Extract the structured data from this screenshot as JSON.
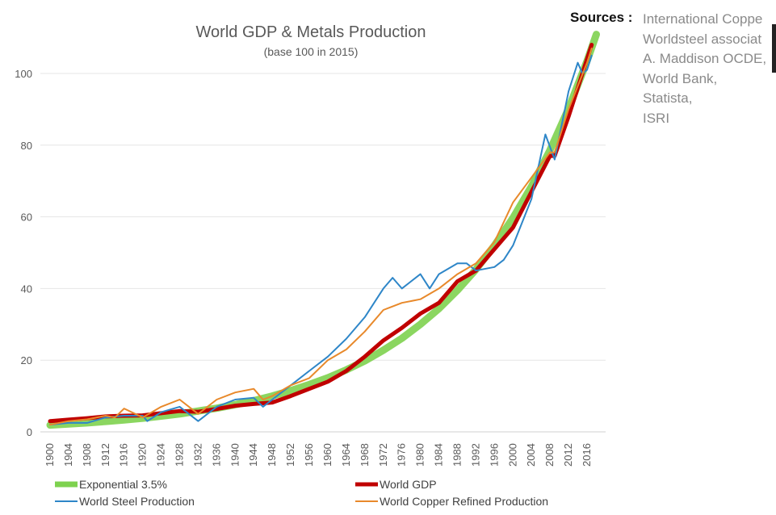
{
  "chart_data": {
    "type": "line",
    "title": "World GDP & Metals Production",
    "subtitle": "(base 100 in 2015)",
    "xlabel": "",
    "ylabel": "",
    "xlim": [
      1900,
      2018
    ],
    "ylim": [
      0,
      110
    ],
    "yticks": [
      0,
      20,
      40,
      60,
      80,
      100
    ],
    "xticks": [
      1900,
      1904,
      1908,
      1912,
      1916,
      1920,
      1924,
      1928,
      1932,
      1936,
      1940,
      1944,
      1948,
      1952,
      1956,
      1960,
      1964,
      1968,
      1972,
      1976,
      1980,
      1984,
      1988,
      1992,
      1996,
      2000,
      2004,
      2008,
      2012,
      2016
    ],
    "grid": "horizontal",
    "legend_placement": "bottom",
    "series": [
      {
        "name": "Exponential 3.5%",
        "color": "#7ed24f",
        "x": [
          1900,
          1904,
          1908,
          1912,
          1916,
          1920,
          1924,
          1928,
          1932,
          1936,
          1940,
          1944,
          1948,
          1952,
          1956,
          1960,
          1964,
          1968,
          1972,
          1976,
          1980,
          1984,
          1988,
          1992,
          1996,
          2000,
          2004,
          2008,
          2012,
          2016,
          2018
        ],
        "y": [
          1.9,
          2.2,
          2.5,
          2.9,
          3.3,
          3.8,
          4.4,
          5.0,
          5.8,
          6.6,
          7.6,
          8.7,
          10.0,
          11.5,
          13.2,
          15.1,
          17.3,
          19.8,
          22.8,
          26.1,
          30.0,
          34.4,
          39.5,
          45.3,
          52.0,
          59.7,
          68.5,
          78.6,
          90.2,
          103.5,
          110.9
        ]
      },
      {
        "name": "World GDP",
        "color": "#c00000",
        "x": [
          1900,
          1904,
          1908,
          1912,
          1916,
          1920,
          1924,
          1928,
          1932,
          1936,
          1940,
          1944,
          1948,
          1952,
          1956,
          1960,
          1964,
          1968,
          1972,
          1976,
          1980,
          1984,
          1988,
          1992,
          1996,
          2000,
          2004,
          2008,
          2009,
          2012,
          2016,
          2017
        ],
        "y": [
          3,
          3.4,
          3.8,
          4.3,
          4.5,
          4.6,
          5.2,
          5.8,
          5.6,
          6.4,
          7.3,
          7.8,
          8.2,
          10,
          12,
          14,
          17,
          21,
          25.5,
          29,
          33,
          36,
          42,
          45,
          51,
          57,
          67,
          77,
          77,
          88,
          104,
          108
        ]
      },
      {
        "name": "World Steel Production",
        "color": "#2e86c8",
        "x": [
          1900,
          1904,
          1908,
          1912,
          1916,
          1920,
          1921,
          1924,
          1928,
          1932,
          1936,
          1940,
          1944,
          1946,
          1948,
          1952,
          1956,
          1960,
          1964,
          1968,
          1970,
          1972,
          1974,
          1976,
          1980,
          1982,
          1984,
          1988,
          1990,
          1992,
          1996,
          1998,
          2000,
          2004,
          2007,
          2009,
          2012,
          2014,
          2015,
          2016,
          2017
        ],
        "y": [
          2,
          2.5,
          2.5,
          4,
          4.5,
          4.5,
          3,
          5.5,
          7,
          3,
          7,
          9,
          9.5,
          7,
          9,
          13,
          17,
          21,
          26,
          32,
          36,
          40,
          43,
          40,
          44,
          40,
          44,
          47,
          47,
          45,
          46,
          48,
          52,
          65,
          83,
          76,
          95,
          103,
          100,
          101,
          105
        ]
      },
      {
        "name": "World Copper Refined Production",
        "color": "#e8892b",
        "x": [
          1900,
          1904,
          1908,
          1912,
          1914,
          1916,
          1920,
          1924,
          1928,
          1932,
          1936,
          1940,
          1944,
          1946,
          1948,
          1952,
          1956,
          1960,
          1964,
          1968,
          1972,
          1976,
          1980,
          1984,
          1988,
          1992,
          1996,
          2000,
          2004,
          2008,
          2009,
          2012,
          2016,
          2017
        ],
        "y": [
          2,
          3,
          3.5,
          4.5,
          4,
          6.5,
          4,
          7,
          9,
          5,
          9,
          11,
          12,
          9,
          10,
          13,
          15,
          20,
          23,
          28,
          34,
          36,
          37,
          40,
          44,
          47,
          53,
          64,
          71,
          78,
          78,
          90,
          103,
          107
        ]
      }
    ]
  },
  "sources": {
    "label": "Sources :",
    "items": [
      "International Coppe",
      "Worldsteel associat",
      "A. Maddison OCDE,",
      "World Bank,",
      "Statista,",
      "ISRI"
    ]
  }
}
